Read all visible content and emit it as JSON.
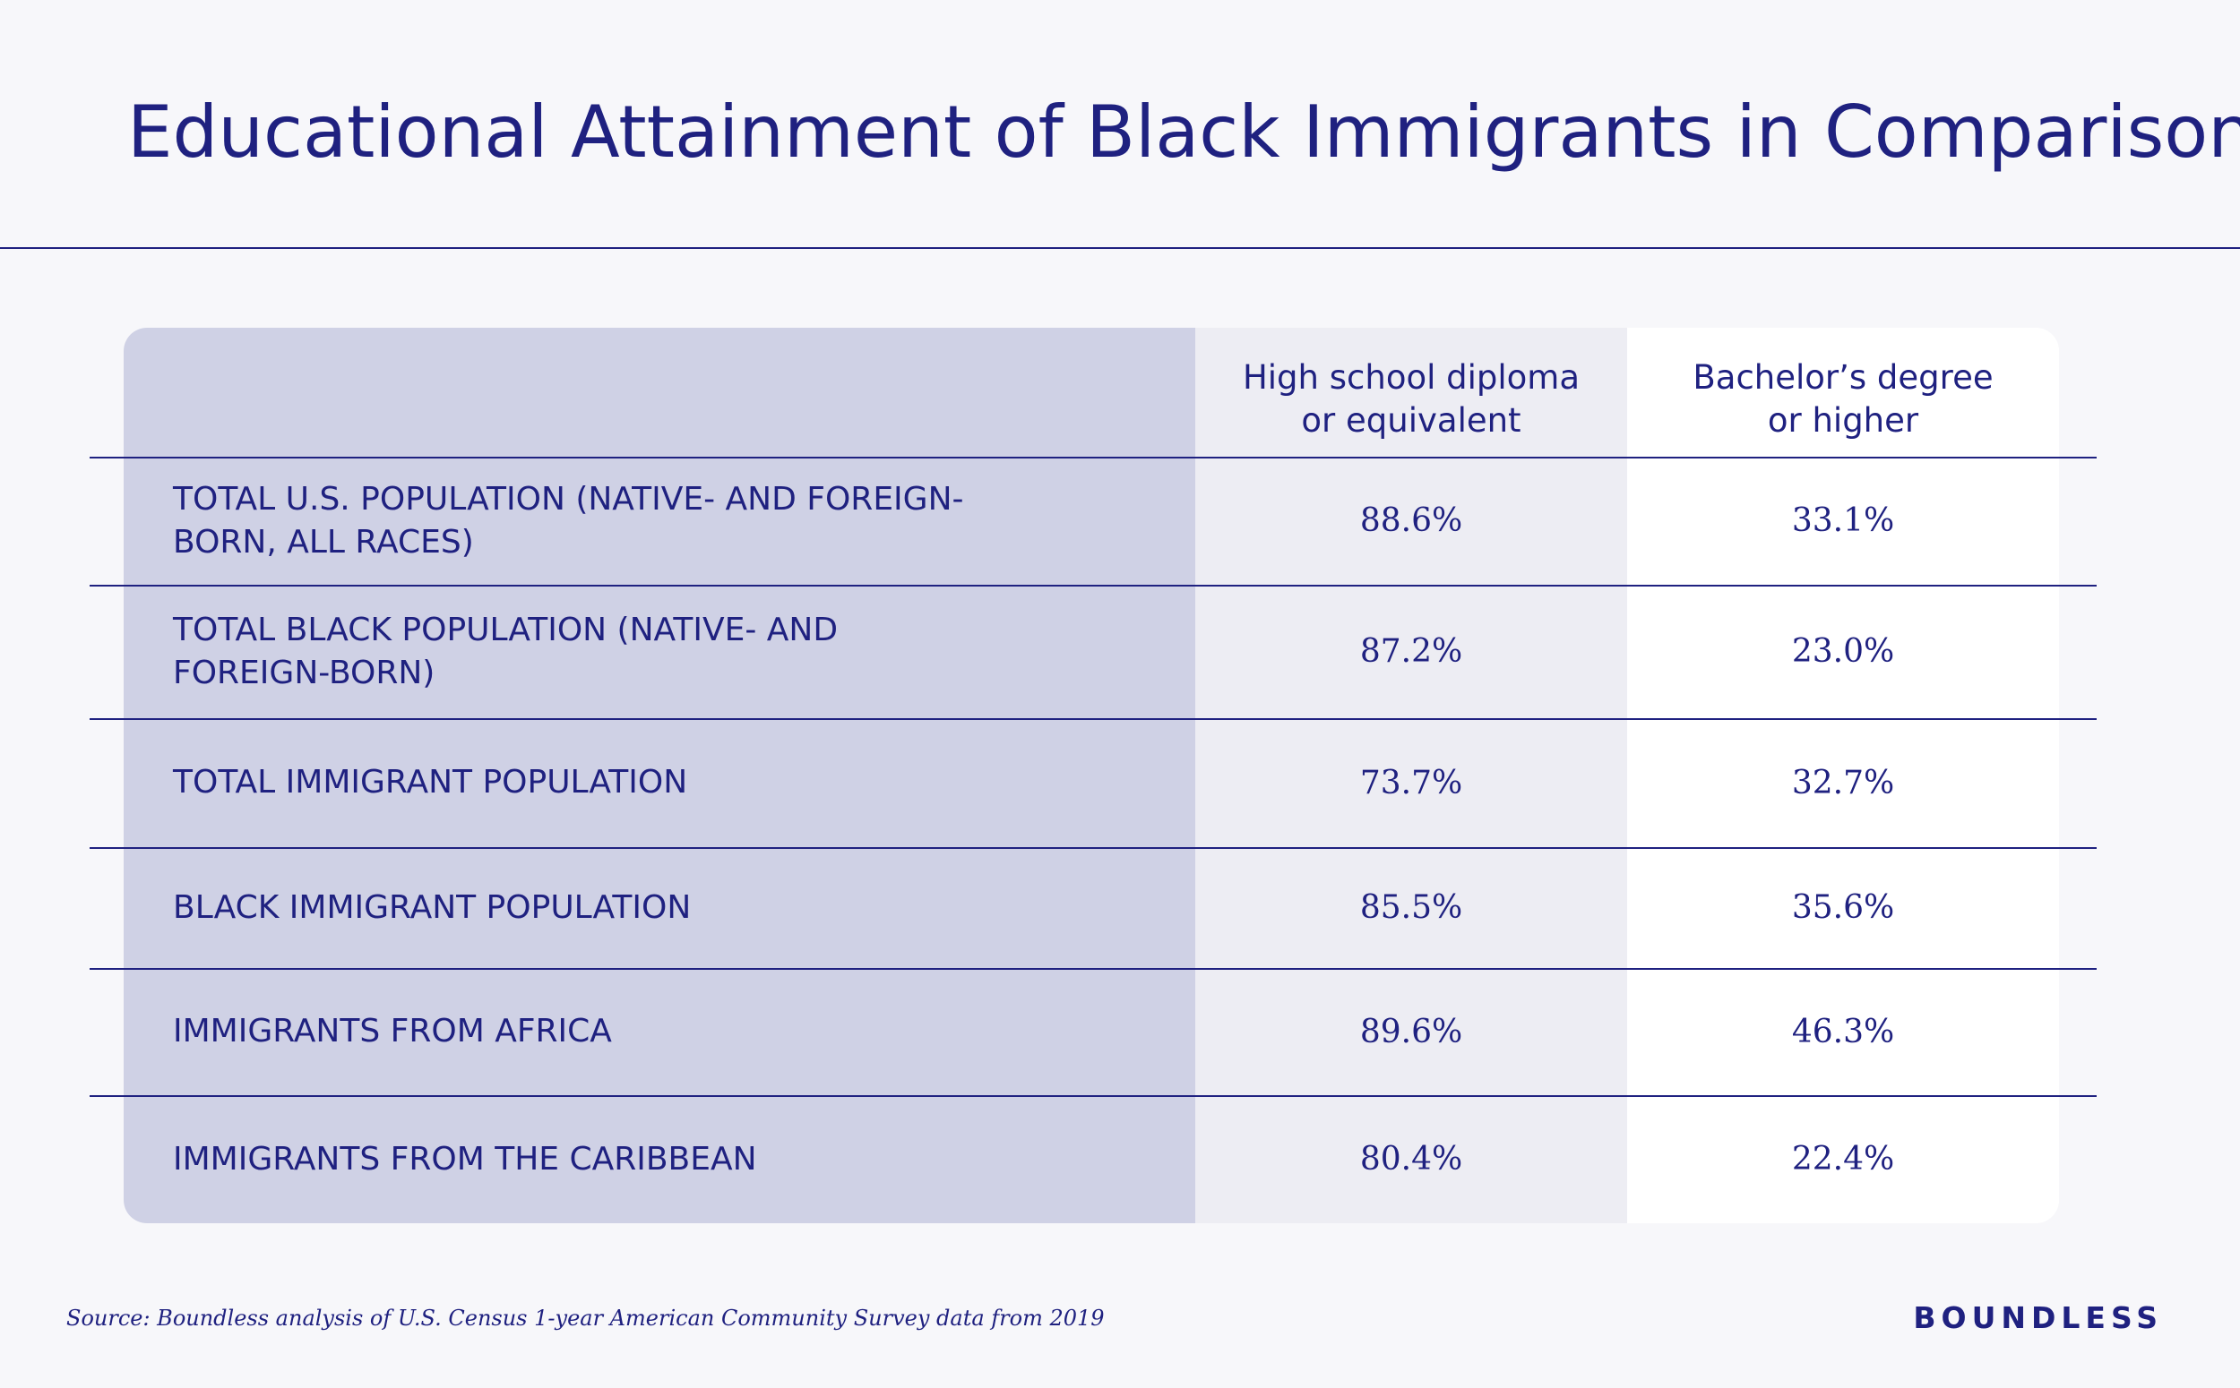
{
  "title": "Educational Attainment of Black Immigrants in Comparison",
  "source": "Source: Boundless analysis of U.S. Census 1-year American Community Survey data from 2019",
  "brand": "BOUNDLESS",
  "colors": {
    "text": "#1f2180",
    "background": "#f7f7fa",
    "label_column": "#cfd1e5",
    "high_school_column": "#ededf3",
    "bachelor_column": "#ffffff"
  },
  "chart_data": {
    "type": "table",
    "title": "Educational Attainment of Black Immigrants in Comparison",
    "columns": [
      "High school diploma or equivalent",
      "Bachelor’s degree or higher"
    ],
    "rows": [
      {
        "label": "TOTAL U.S. POPULATION (NATIVE- AND FOREIGN-BORN, ALL RACES)",
        "values": [
          "88.6%",
          "33.1%"
        ]
      },
      {
        "label": "TOTAL BLACK POPULATION (NATIVE- AND FOREIGN-BORN)",
        "values": [
          "87.2%",
          "23.0%"
        ]
      },
      {
        "label": "TOTAL IMMIGRANT POPULATION",
        "values": [
          "73.7%",
          "32.7%"
        ]
      },
      {
        "label": "BLACK IMMIGRANT POPULATION",
        "values": [
          "85.5%",
          "35.6%"
        ]
      },
      {
        "label": "IMMIGRANTS FROM AFRICA",
        "values": [
          "89.6%",
          "46.3%"
        ]
      },
      {
        "label": "IMMIGRANTS FROM THE CARIBBEAN",
        "values": [
          "80.4%",
          "22.4%"
        ]
      }
    ]
  }
}
